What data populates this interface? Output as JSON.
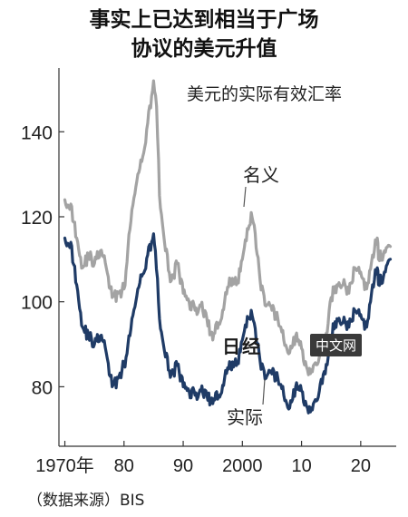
{
  "title_line1": "事实上已达到相当于广场",
  "title_line2": "协议的美元升值",
  "source": "（数据来源）BIS",
  "watermark": {
    "logo": "日经",
    "badge": "中文网"
  },
  "colors": {
    "nominal": "#a3a3a3",
    "real": "#1f3b66",
    "axis": "#333333",
    "text": "#111111"
  },
  "chart_data": {
    "type": "line",
    "title": "美元的实际有效汇率",
    "xlabel": "",
    "ylabel": "",
    "xlim": [
      1969,
      2026
    ],
    "ylim": [
      66,
      155
    ],
    "yticks": [
      80,
      100,
      120,
      140
    ],
    "ytick_labels": [
      "80",
      "100",
      "120",
      "140"
    ],
    "xticks": [
      1970,
      1980,
      1990,
      2000,
      2010,
      2020
    ],
    "xtick_labels": [
      "1970年",
      "80",
      "90",
      "2000",
      "10",
      "20"
    ],
    "grid": false,
    "series": [
      {
        "name": "名义",
        "color": "#a3a3a3",
        "x": [
          1970,
          1971,
          1972,
          1973,
          1974,
          1975,
          1976,
          1977,
          1978,
          1979,
          1980,
          1981,
          1982,
          1983,
          1984,
          1985,
          1985.5,
          1986,
          1987,
          1988,
          1989,
          1990,
          1991,
          1992,
          1993,
          1994,
          1995,
          1996,
          1997,
          1998,
          1999,
          2000,
          2001,
          2001.5,
          2002,
          2003,
          2004,
          2005,
          2006,
          2007,
          2008,
          2009,
          2010,
          2011,
          2012,
          2013,
          2014,
          2015,
          2016,
          2017,
          2018,
          2019,
          2020,
          2021,
          2022,
          2022.8,
          2023,
          2024,
          2025
        ],
        "values": [
          124,
          123,
          115,
          108,
          111,
          109,
          112,
          108,
          101,
          102,
          103,
          117,
          127,
          133,
          142,
          152,
          146,
          125,
          112,
          105,
          109,
          102,
          100,
          98,
          99,
          96,
          91,
          95,
          100,
          105,
          104,
          110,
          117,
          121,
          118,
          105,
          99,
          98,
          96,
          91,
          88,
          92,
          89,
          84,
          85,
          87,
          90,
          101,
          104,
          104,
          102,
          108,
          107,
          103,
          111,
          115,
          110,
          112,
          113
        ]
      },
      {
        "name": "实际",
        "color": "#1f3b66",
        "x": [
          1970,
          1971,
          1972,
          1973,
          1974,
          1975,
          1976,
          1977,
          1978,
          1979,
          1980,
          1981,
          1982,
          1983,
          1984,
          1985,
          1985.3,
          1986,
          1987,
          1988,
          1989,
          1990,
          1991,
          1992,
          1993,
          1994,
          1995,
          1996,
          1997,
          1998,
          1999,
          2000,
          2001,
          2001.5,
          2002,
          2003,
          2004,
          2005,
          2006,
          2007,
          2008,
          2009,
          2010,
          2011,
          2012,
          2013,
          2014,
          2015,
          2016,
          2017,
          2018,
          2019,
          2020,
          2021,
          2022,
          2022.8,
          2023,
          2024,
          2025
        ],
        "values": [
          115,
          114,
          104,
          94,
          92,
          90,
          92,
          88,
          80,
          82,
          85,
          92,
          100,
          106,
          111,
          116,
          112,
          96,
          87,
          83,
          85,
          80,
          79,
          78,
          79,
          78,
          76,
          78,
          82,
          85,
          85,
          91,
          96,
          98,
          95,
          86,
          82,
          83,
          82,
          78,
          75,
          80,
          79,
          75,
          76,
          79,
          83,
          92,
          96,
          95,
          94,
          98,
          97,
          94,
          104,
          108,
          104,
          107,
          110
        ]
      }
    ],
    "annotations": [
      {
        "text": "名义",
        "series": 0
      },
      {
        "text": "实际",
        "series": 1
      }
    ]
  }
}
